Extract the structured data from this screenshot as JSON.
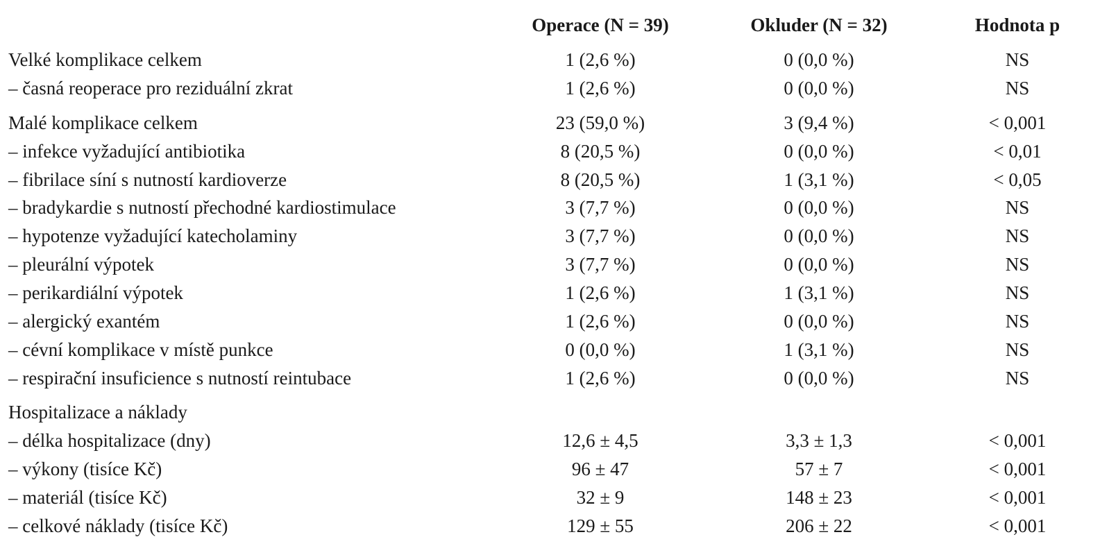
{
  "header": {
    "col1": "Operace (N = 39)",
    "col2": "Okluder (N = 32)",
    "col3": "Hodnota p"
  },
  "rows": [
    {
      "label": "Velké komplikace celkem",
      "op": "1 (2,6 %)",
      "ok": "0 (0,0 %)",
      "p": "NS"
    },
    {
      "label": "– časná reoperace pro reziduální zkrat",
      "op": "1 (2,6 %)",
      "ok": "0 (0,0 %)",
      "p": "NS"
    },
    {
      "label": "Malé komplikace celkem",
      "op": "23 (59,0 %)",
      "ok": "3 (9,4 %)",
      "p": "< 0,001"
    },
    {
      "label": "– infekce vyžadující antibiotika",
      "op": "8 (20,5 %)",
      "ok": "0 (0,0 %)",
      "p": "< 0,01"
    },
    {
      "label": "– fibrilace síní s nutností kardioverze",
      "op": "8 (20,5 %)",
      "ok": "1 (3,1 %)",
      "p": "< 0,05"
    },
    {
      "label": "– bradykardie s nutností přechodné kardiostimulace",
      "op": "3 (7,7 %)",
      "ok": "0 (0,0 %)",
      "p": "NS"
    },
    {
      "label": "– hypotenze vyžadující katecholaminy",
      "op": "3 (7,7 %)",
      "ok": "0 (0,0 %)",
      "p": "NS"
    },
    {
      "label": "– pleurální výpotek",
      "op": "3 (7,7 %)",
      "ok": "0 (0,0 %)",
      "p": "NS"
    },
    {
      "label": "– perikardiální výpotek",
      "op": "1 (2,6 %)",
      "ok": "1 (3,1 %)",
      "p": "NS"
    },
    {
      "label": "– alergický exantém",
      "op": "1 (2,6 %)",
      "ok": "0 (0,0 %)",
      "p": "NS"
    },
    {
      "label": "– cévní komplikace v místě punkce",
      "op": "0 (0,0 %)",
      "ok": "1 (3,1 %)",
      "p": "NS"
    },
    {
      "label": "– respirační insuficience s nutností reintubace",
      "op": "1 (2,6 %)",
      "ok": "0 (0,0 %)",
      "p": "NS"
    },
    {
      "label": "Hospitalizace a náklady",
      "op": "",
      "ok": "",
      "p": ""
    },
    {
      "label": "– délka hospitalizace (dny)",
      "op": "12,6 ± 4,5",
      "ok": "3,3 ± 1,3",
      "p": "< 0,001"
    },
    {
      "label": "– výkony (tisíce Kč)",
      "op": "96 ± 47",
      "ok": "57 ± 7",
      "p": "< 0,001"
    },
    {
      "label": "– materiál (tisíce Kč)",
      "op": "32 ± 9",
      "ok": "148 ± 23",
      "p": "< 0,001"
    },
    {
      "label": "– celkové náklady (tisíce Kč)",
      "op": "129 ± 55",
      "ok": "206 ± 22",
      "p": "< 0,001"
    }
  ]
}
